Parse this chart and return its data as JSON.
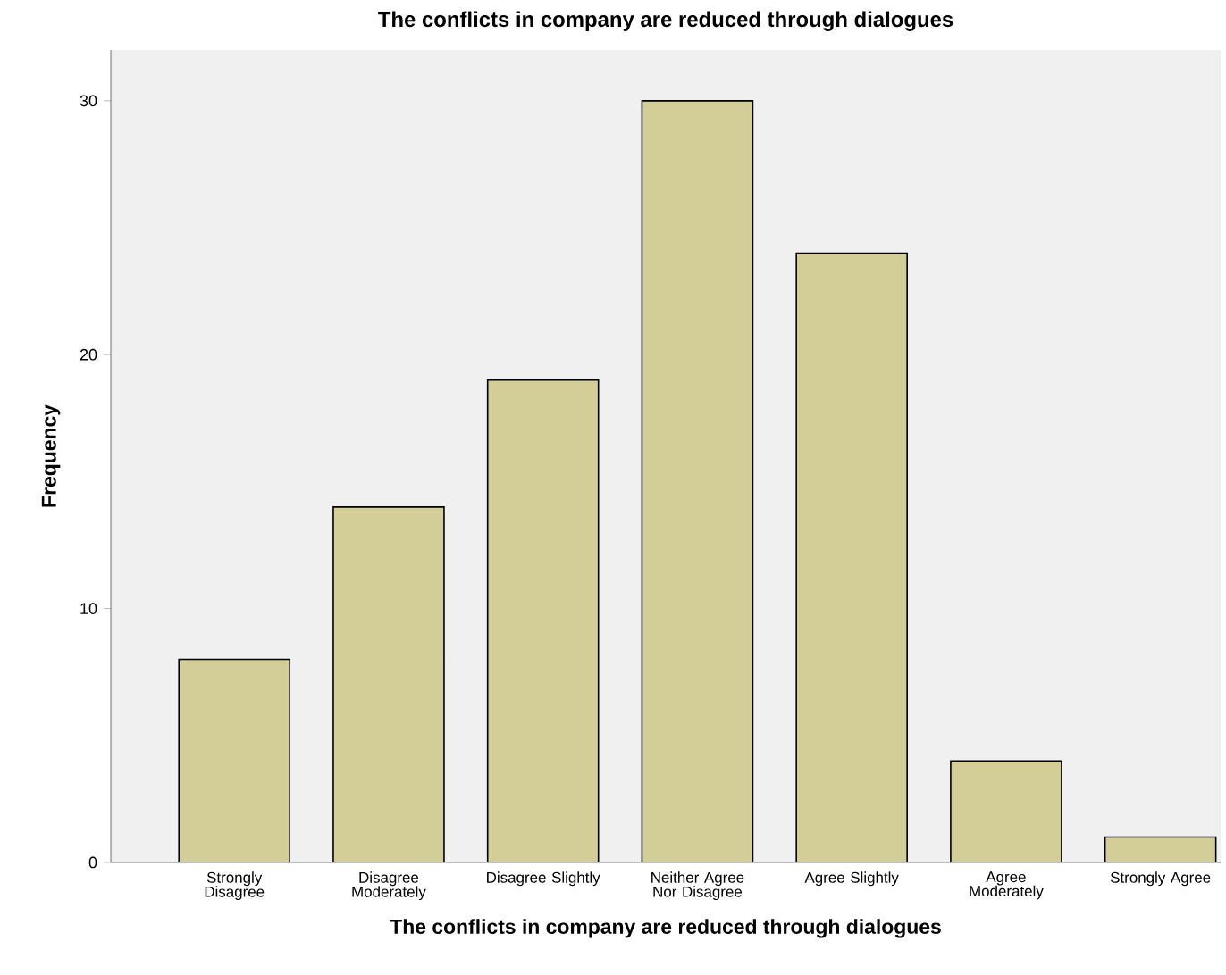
{
  "chart_data": {
    "type": "bar",
    "title": "The conflicts in company are reduced through dialogues",
    "xlabel": "The conflicts in company are reduced through dialogues",
    "ylabel": "Frequency",
    "categories": [
      "Strongly Disagree",
      "Disagree Moderately",
      "Disagree Slightly",
      "Neither Agree Nor Disagree",
      "Agree Slightly",
      "Agree Moderately",
      "Strongly Agree"
    ],
    "values": [
      8,
      14,
      19,
      30,
      24,
      4,
      1
    ],
    "color": "#d3ce97",
    "ylim": [
      0,
      32
    ],
    "yticks": [
      0,
      10,
      20,
      30
    ],
    "grid": false
  }
}
